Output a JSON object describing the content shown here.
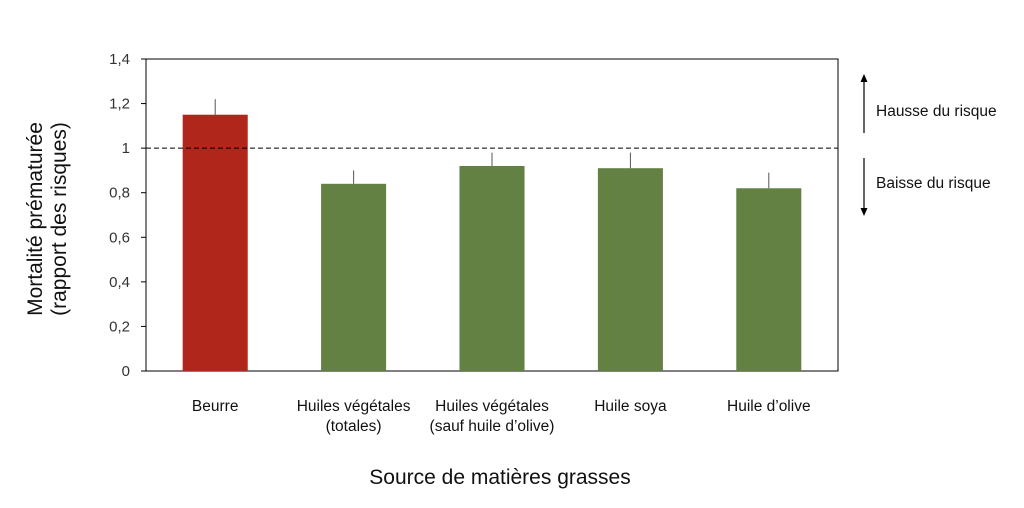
{
  "chart_data": {
    "type": "bar",
    "categories": [
      [
        "Beurre"
      ],
      [
        "Huiles végétales",
        "(totales)"
      ],
      [
        "Huiles végétales",
        "(sauf huile d’olive)"
      ],
      [
        "Huile soya"
      ],
      [
        "Huile d’olive"
      ]
    ],
    "values": [
      1.15,
      0.84,
      0.92,
      0.91,
      0.82
    ],
    "error_upper": [
      1.22,
      0.9,
      0.98,
      0.98,
      0.89
    ],
    "bar_colors": [
      "#B0261A",
      "#628142",
      "#628142",
      "#628142",
      "#628142"
    ],
    "xlabel": "Source de matières grasses",
    "ylabel": [
      "Mortalité prématurée",
      "(rapport des risques)"
    ],
    "ylim": [
      0,
      1.4
    ],
    "yticks": [
      "0",
      "0,2",
      "0,4",
      "0,6",
      "0,8",
      "1",
      "1,2",
      "1,4"
    ],
    "reference_line": 1,
    "annotations": {
      "up": "Hausse du risque",
      "down": "Baisse du risque"
    }
  }
}
